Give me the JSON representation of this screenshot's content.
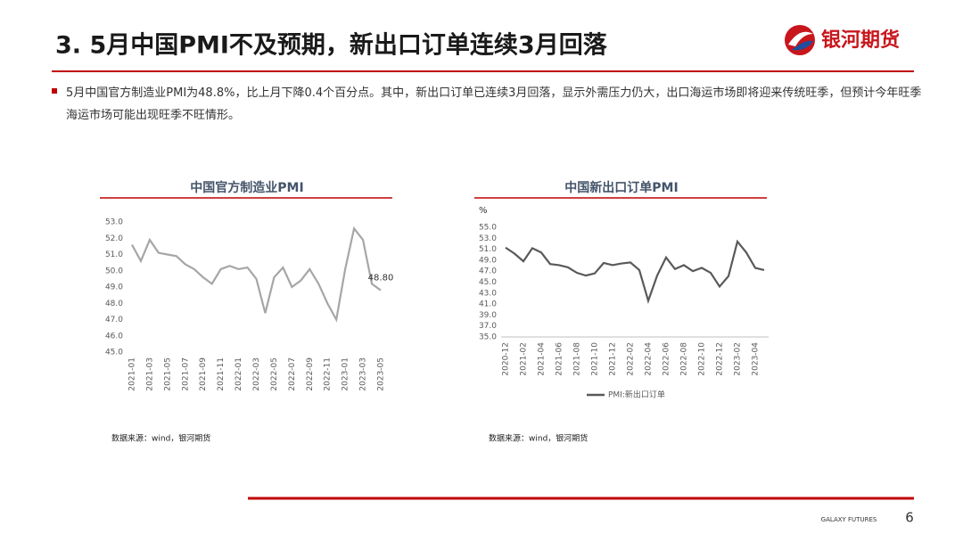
{
  "title": "3. 5月中国PMI不及预期，新出口订单连续3月回落",
  "logo": "银河期货",
  "bullet": "5月中国官方制造业PMI为48.8%，比上月下降0.4个百分点。其中，新出口订单已连续3月回落，显示外需压力仍大，出口海运市场即将迎来传统旺季，但预计今年旺季海运市场可能出现旺季不旺情形。",
  "footer": {
    "brand": "GALAXY FUTURES",
    "page": "6"
  },
  "chart_data": [
    {
      "type": "line",
      "title": "中国官方制造业PMI",
      "source": "数据来源：wind，银河期货",
      "categories": [
        "2021-01",
        null,
        "2021-03",
        null,
        "2021-05",
        null,
        "2021-07",
        null,
        "2021-09",
        null,
        "2021-11",
        null,
        "2022-01",
        null,
        "2022-03",
        null,
        "2022-05",
        null,
        "2022-07",
        null,
        "2022-09",
        null,
        "2022-11",
        null,
        "2023-01",
        null,
        "2023-03",
        null,
        "2023-05"
      ],
      "values": [
        51.6,
        50.6,
        51.9,
        51.1,
        51.0,
        50.9,
        50.4,
        50.1,
        49.6,
        49.2,
        50.1,
        50.3,
        50.1,
        50.2,
        49.5,
        47.4,
        49.6,
        50.2,
        49.0,
        49.4,
        50.1,
        49.2,
        48.0,
        47.0,
        50.1,
        52.6,
        51.9,
        49.2,
        48.8
      ],
      "value_labels": [
        null,
        null,
        null,
        null,
        null,
        null,
        null,
        null,
        null,
        null,
        null,
        null,
        null,
        null,
        null,
        null,
        null,
        null,
        null,
        null,
        null,
        null,
        null,
        null,
        null,
        null,
        null,
        null,
        "48.80"
      ],
      "color": "#a6a6a6",
      "ylim": [
        45,
        53
      ],
      "yticks": [
        {
          "value": 45,
          "label": "45.0"
        },
        {
          "value": 46,
          "label": "46.0"
        },
        {
          "value": 47,
          "label": "47.0"
        },
        {
          "value": 48,
          "label": "48.0"
        },
        {
          "value": 49,
          "label": "49.0"
        },
        {
          "value": 50,
          "label": "50.0"
        },
        {
          "value": 51,
          "label": "51.0"
        },
        {
          "value": 52,
          "label": "52.0"
        },
        {
          "value": 53,
          "label": "53.0"
        }
      ]
    },
    {
      "type": "line",
      "title": "中国新出口订单PMI",
      "source": "数据来源：wind，银河期货",
      "y_label": "%",
      "categories": [
        "2020-12",
        null,
        "2021-02",
        null,
        "2021-04",
        null,
        "2021-06",
        null,
        "2021-08",
        null,
        "2021-10",
        null,
        "2021-12",
        null,
        "2022-02",
        null,
        "2022-04",
        null,
        "2022-06",
        null,
        "2022-08",
        null,
        "2022-10",
        null,
        "2022-12",
        null,
        "2023-02",
        null,
        "2023-04",
        null
      ],
      "series": [
        {
          "name": "PMI:新出口订单",
          "color": "#595959",
          "values": [
            51.3,
            50.2,
            48.8,
            51.2,
            50.4,
            48.3,
            48.1,
            47.7,
            46.7,
            46.2,
            46.6,
            48.5,
            48.1,
            48.4,
            48.6,
            47.2,
            41.6,
            46.2,
            49.5,
            47.4,
            48.1,
            47.0,
            47.6,
            46.7,
            44.2,
            46.1,
            52.4,
            50.4,
            47.6,
            47.2
          ]
        }
      ],
      "legend": "bottom",
      "ylim": [
        35,
        55
      ],
      "yticks": [
        {
          "value": 35,
          "label": "35.0"
        },
        {
          "value": 37,
          "label": "37.0"
        },
        {
          "value": 39,
          "label": "39.0"
        },
        {
          "value": 41,
          "label": "41.0"
        },
        {
          "value": 43,
          "label": "43.0"
        },
        {
          "value": 45,
          "label": "45.0"
        },
        {
          "value": 47,
          "label": "47.0"
        },
        {
          "value": 49,
          "label": "49.0"
        },
        {
          "value": 51,
          "label": "51.0"
        },
        {
          "value": 53,
          "label": "53.0"
        },
        {
          "value": 55,
          "label": "55.0"
        }
      ]
    }
  ]
}
